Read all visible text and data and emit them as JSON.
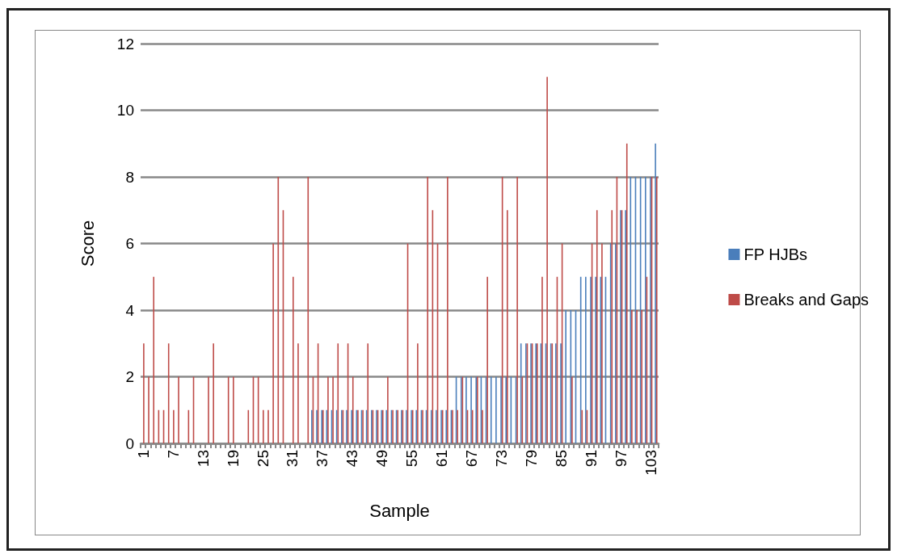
{
  "chart_data": {
    "type": "bar",
    "xlabel": "Sample",
    "ylabel": "Score",
    "categories": [
      "1",
      null,
      null,
      null,
      null,
      null,
      "7",
      null,
      null,
      null,
      null,
      null,
      "13",
      null,
      null,
      null,
      null,
      null,
      "19",
      null,
      null,
      null,
      null,
      null,
      "25",
      null,
      null,
      null,
      null,
      null,
      "31",
      null,
      null,
      null,
      null,
      null,
      "37",
      null,
      null,
      null,
      null,
      null,
      "43",
      null,
      null,
      null,
      null,
      null,
      "49",
      null,
      null,
      null,
      null,
      null,
      "55",
      null,
      null,
      null,
      null,
      null,
      "61",
      null,
      null,
      null,
      null,
      null,
      "67",
      null,
      null,
      null,
      null,
      null,
      "73",
      null,
      null,
      null,
      null,
      null,
      "79",
      null,
      null,
      null,
      null,
      null,
      "85",
      null,
      null,
      null,
      null,
      null,
      "91",
      null,
      null,
      null,
      null,
      null,
      "97",
      null,
      null,
      null,
      null,
      null,
      "103",
      null
    ],
    "series": [
      {
        "name": "FP HJBs",
        "color": "#4a7ebb",
        "values": [
          0,
          0,
          0,
          0,
          0,
          0,
          0,
          0,
          0,
          0,
          0,
          0,
          0,
          0,
          0,
          0,
          0,
          0,
          0,
          0,
          0,
          0,
          0,
          0,
          0,
          0,
          0,
          0,
          0,
          0,
          0,
          0,
          0,
          0,
          1,
          1,
          1,
          1,
          1,
          1,
          1,
          1,
          1,
          1,
          1,
          1,
          1,
          1,
          1,
          1,
          1,
          1,
          1,
          1,
          1,
          1,
          1,
          1,
          1,
          1,
          1,
          1,
          1,
          2,
          2,
          2,
          2,
          2,
          2,
          2,
          2,
          2,
          2,
          2,
          2,
          2,
          3,
          3,
          3,
          3,
          3,
          3,
          3,
          3,
          3,
          4,
          4,
          4,
          5,
          5,
          5,
          5,
          5,
          5,
          6,
          6,
          7,
          7,
          8,
          8,
          8,
          8,
          8,
          9
        ]
      },
      {
        "name": "Breaks and Gaps",
        "color": "#be4b48",
        "values": [
          3,
          2,
          5,
          1,
          1,
          3,
          1,
          2,
          0,
          1,
          2,
          0,
          0,
          2,
          3,
          0,
          0,
          2,
          2,
          0,
          0,
          1,
          2,
          2,
          1,
          1,
          6,
          8,
          7,
          0,
          5,
          3,
          0,
          8,
          2,
          3,
          1,
          2,
          2,
          3,
          1,
          3,
          2,
          1,
          1,
          3,
          1,
          1,
          1,
          2,
          1,
          1,
          1,
          6,
          1,
          3,
          1,
          8,
          7,
          6,
          1,
          8,
          1,
          1,
          2,
          1,
          1,
          2,
          1,
          5,
          0,
          0,
          8,
          7,
          0,
          8,
          2,
          3,
          3,
          3,
          5,
          11,
          3,
          5,
          6,
          0,
          2,
          0,
          1,
          1,
          6,
          7,
          6,
          0,
          7,
          8,
          7,
          9,
          4,
          4,
          4,
          5,
          8,
          8
        ]
      }
    ],
    "ylim": [
      0,
      12
    ],
    "yticks": [
      0,
      2,
      4,
      6,
      8,
      10,
      12
    ],
    "grid": "y",
    "legend": "right"
  }
}
